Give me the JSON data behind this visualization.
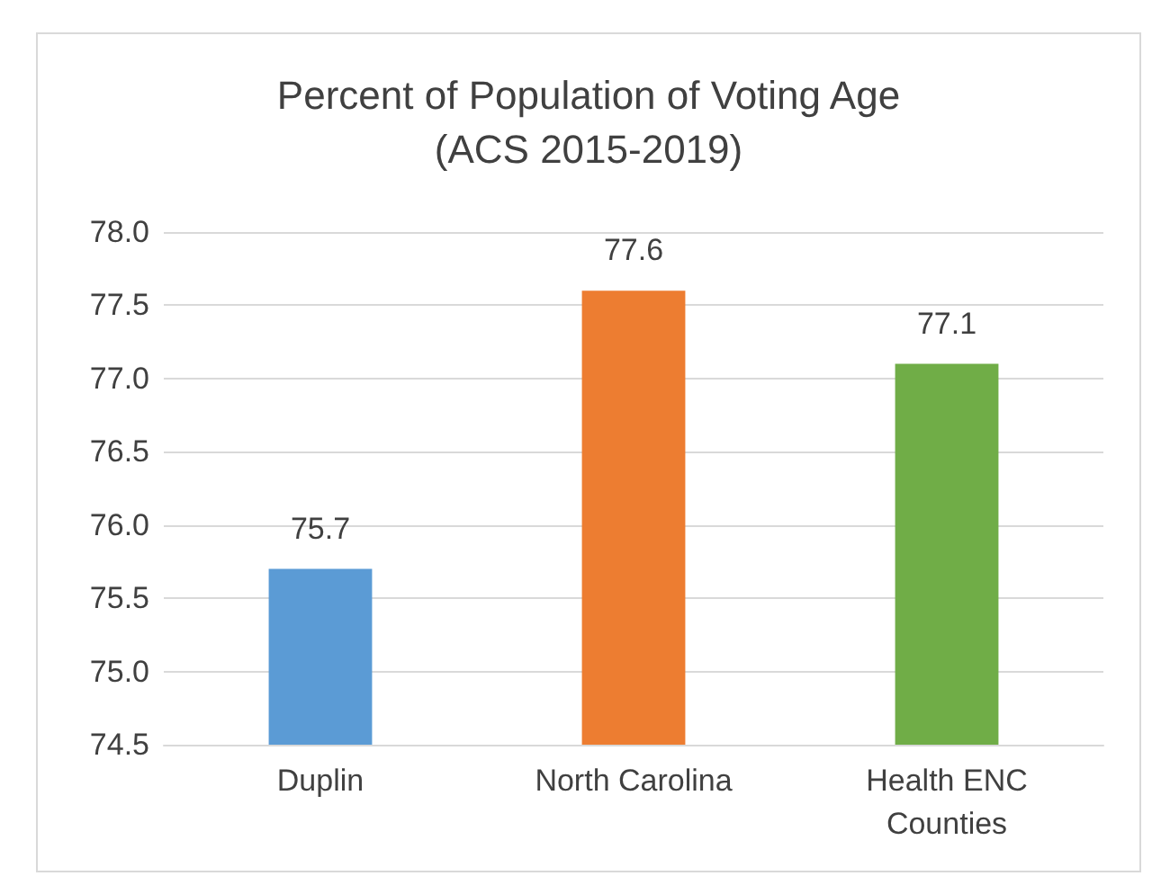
{
  "chart_data": {
    "type": "bar",
    "title": "Percent of Population of Voting Age\n(ACS 2015-2019)",
    "categories": [
      "Duplin",
      "North Carolina",
      "Health ENC\nCounties"
    ],
    "values": [
      75.7,
      77.6,
      77.1
    ],
    "colors": [
      "#5b9bd5",
      "#ed7d31",
      "#70ad47"
    ],
    "ylim": [
      74.5,
      78.0
    ],
    "yticks": [
      "74.5",
      "75.0",
      "75.5",
      "76.0",
      "76.5",
      "77.0",
      "77.5",
      "78.0"
    ],
    "grid": "y",
    "data_labels": true
  }
}
